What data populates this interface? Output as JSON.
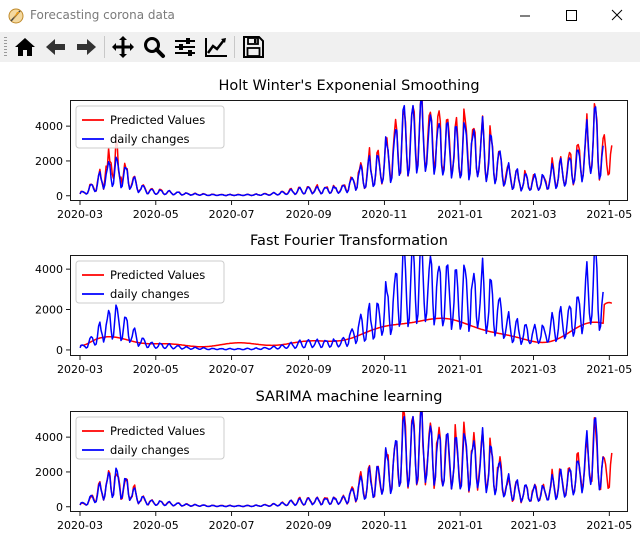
{
  "window": {
    "title": "Forecasting corona data"
  },
  "toolbar": {
    "buttons": [
      {
        "name": "home-icon"
      },
      {
        "name": "back-arrow-icon"
      },
      {
        "name": "forward-arrow-icon"
      },
      {
        "name": "pan-icon"
      },
      {
        "name": "zoom-icon"
      },
      {
        "name": "configure-subplots-icon"
      },
      {
        "name": "edit-axis-icon"
      },
      {
        "name": "save-icon"
      }
    ]
  },
  "colors": {
    "predicted": "#ff0000",
    "daily": "#0000ff"
  },
  "chart_data": [
    {
      "type": "line",
      "title": "Holt Winter's Exponenial Smoothing",
      "x_ticks": [
        "2020-03",
        "2020-05",
        "2020-07",
        "2020-09",
        "2020-11",
        "2021-01",
        "2021-03",
        "2021-05"
      ],
      "y_ticks": [
        "0",
        "2000",
        "4000"
      ],
      "ylim": [
        -300,
        5500
      ],
      "legend": "top-left",
      "series": [
        {
          "name": "Predicted Values",
          "color": "#ff0000",
          "forecast_end": "2021-05-03"
        },
        {
          "name": "daily changes",
          "color": "#0000ff",
          "end": "2021-04-26"
        }
      ]
    },
    {
      "type": "line",
      "title": "Fast Fourier Transformation",
      "x_ticks": [
        "2020-03",
        "2020-05",
        "2020-07",
        "2020-09",
        "2020-11",
        "2021-01",
        "2021-03",
        "2021-05"
      ],
      "y_ticks": [
        "0",
        "2000",
        "4000"
      ],
      "ylim": [
        -300,
        4700
      ],
      "legend": "top-left",
      "series": [
        {
          "name": "Predicted Values",
          "color": "#ff0000",
          "forecast_end": "2021-05-03"
        },
        {
          "name": "daily changes",
          "color": "#0000ff",
          "end": "2021-04-26"
        }
      ]
    },
    {
      "type": "line",
      "title": "SARIMA machine learning",
      "x_ticks": [
        "2020-03",
        "2020-05",
        "2020-07",
        "2020-09",
        "2020-11",
        "2021-01",
        "2021-03",
        "2021-05"
      ],
      "y_ticks": [
        "0",
        "2000",
        "4000"
      ],
      "ylim": [
        -300,
        5500
      ],
      "legend": "top-left",
      "series": [
        {
          "name": "Predicted Values",
          "color": "#ff0000",
          "forecast_end": "2021-05-03"
        },
        {
          "name": "daily changes",
          "color": "#0000ff",
          "end": "2021-04-26"
        }
      ]
    }
  ]
}
